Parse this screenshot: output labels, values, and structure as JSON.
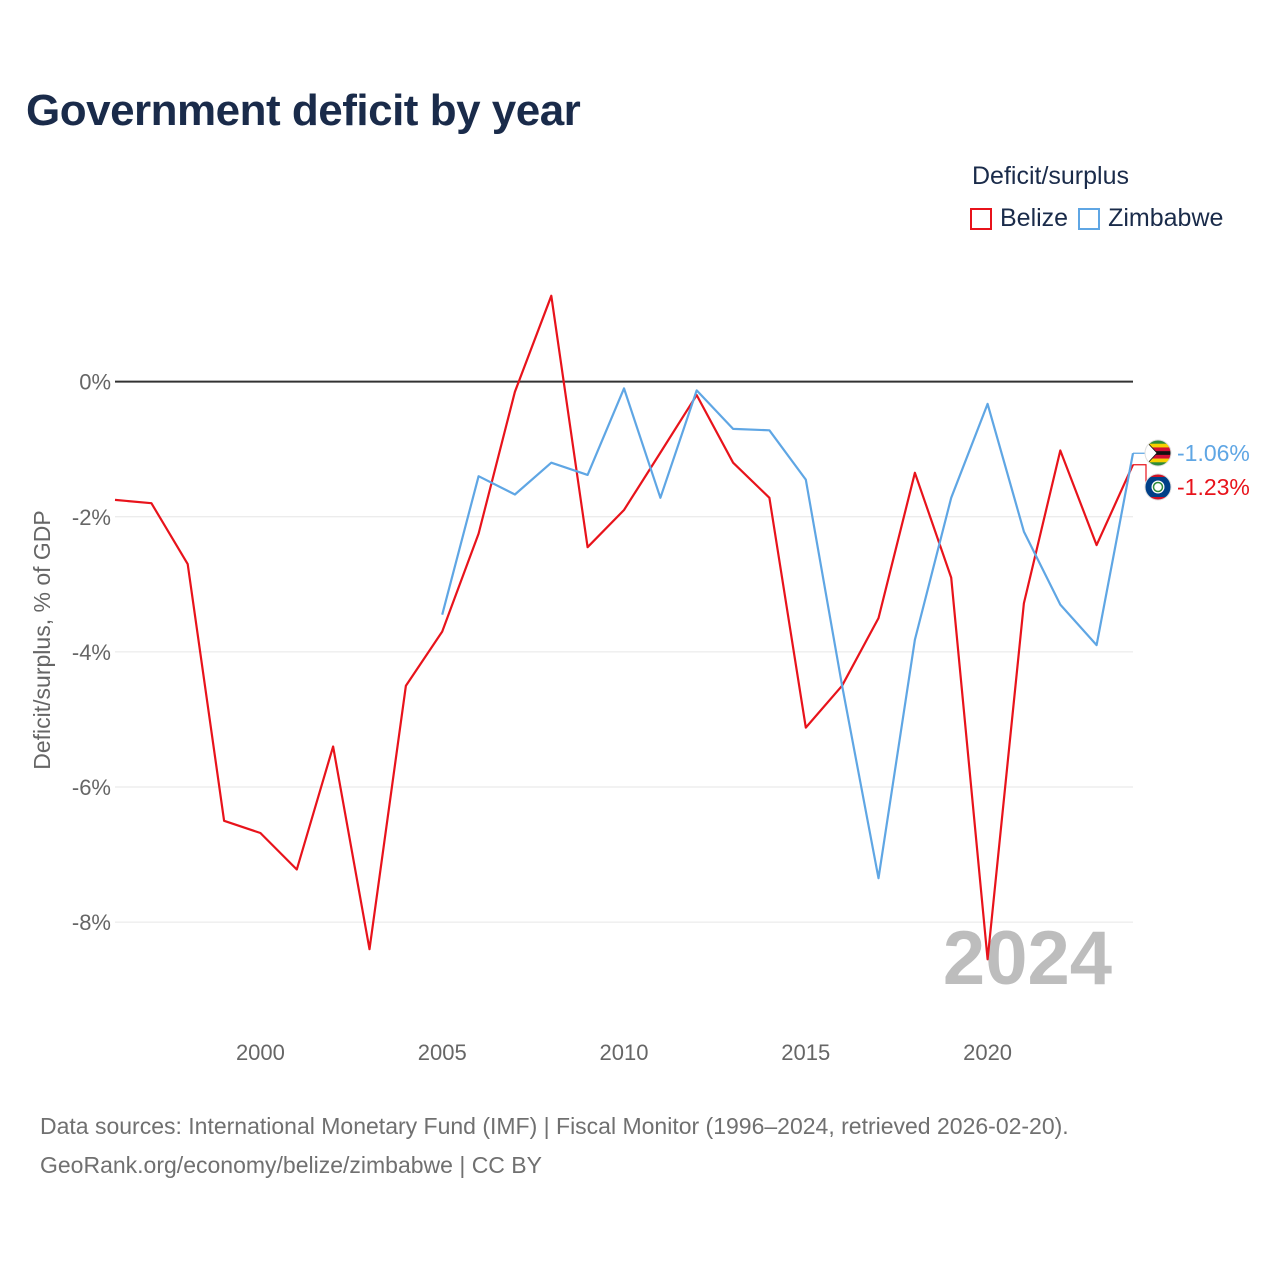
{
  "title": "Government deficit by year",
  "legend": {
    "title": "Deficit/surplus",
    "items": [
      {
        "name": "Belize",
        "color": "#e8131b"
      },
      {
        "name": "Zimbabwe",
        "color": "#5fa6e4"
      }
    ]
  },
  "source_lines": [
    "Data sources: International Monetary Fund (IMF) | Fiscal Monitor (1996–2024, retrieved 2026-02-20).",
    "GeoRank.org/economy/belize/zimbabwe | CC BY"
  ],
  "watermark_year": "2024",
  "chart_data": {
    "type": "line",
    "title": "Government deficit by year",
    "xlabel": "",
    "ylabel": "Deficit/surplus, % of GDP",
    "xlim": [
      1996,
      2024
    ],
    "ylim": [
      -9.3,
      1.8
    ],
    "x_ticks": [
      {
        "value": 2000,
        "label": "2000"
      },
      {
        "value": 2005,
        "label": "2005"
      },
      {
        "value": 2010,
        "label": "2010"
      },
      {
        "value": 2015,
        "label": "2015"
      },
      {
        "value": 2020,
        "label": "2020"
      }
    ],
    "y_ticks": [
      {
        "value": 0,
        "label": "0%"
      },
      {
        "value": -2,
        "label": "-2%"
      },
      {
        "value": -4,
        "label": "-4%"
      },
      {
        "value": -6,
        "label": "-6%"
      },
      {
        "value": -8,
        "label": "-8%"
      }
    ],
    "series": [
      {
        "name": "Belize",
        "color": "#e8131b",
        "end_label": "-1.23%",
        "x": [
          1996,
          1997,
          1998,
          1999,
          2000,
          2001,
          2002,
          2003,
          2004,
          2005,
          2006,
          2007,
          2008,
          2009,
          2010,
          2011,
          2012,
          2013,
          2014,
          2015,
          2016,
          2017,
          2018,
          2019,
          2020,
          2021,
          2022,
          2023,
          2024
        ],
        "values": [
          -1.75,
          -1.8,
          -2.7,
          -6.5,
          -6.68,
          -7.22,
          -5.4,
          -8.4,
          -4.5,
          -3.7,
          -2.25,
          -0.15,
          1.27,
          -2.45,
          -1.9,
          -1.05,
          -0.2,
          -1.2,
          -1.72,
          -5.12,
          -4.5,
          -3.5,
          -1.35,
          -2.9,
          -8.55,
          -3.28,
          -1.02,
          -2.42,
          -1.23
        ]
      },
      {
        "name": "Zimbabwe",
        "color": "#5fa6e4",
        "end_label": "-1.06%",
        "x": [
          2005,
          2006,
          2007,
          2008,
          2009,
          2010,
          2011,
          2012,
          2013,
          2014,
          2015,
          2016,
          2017,
          2018,
          2019,
          2020,
          2021,
          2022,
          2023,
          2024
        ],
        "values": [
          -3.45,
          -1.4,
          -1.67,
          -1.2,
          -1.38,
          -0.1,
          -1.72,
          -0.13,
          -0.7,
          -0.72,
          -1.45,
          -4.5,
          -7.35,
          -3.82,
          -1.72,
          -0.33,
          -2.22,
          -3.3,
          -3.9,
          -1.06
        ]
      }
    ]
  }
}
